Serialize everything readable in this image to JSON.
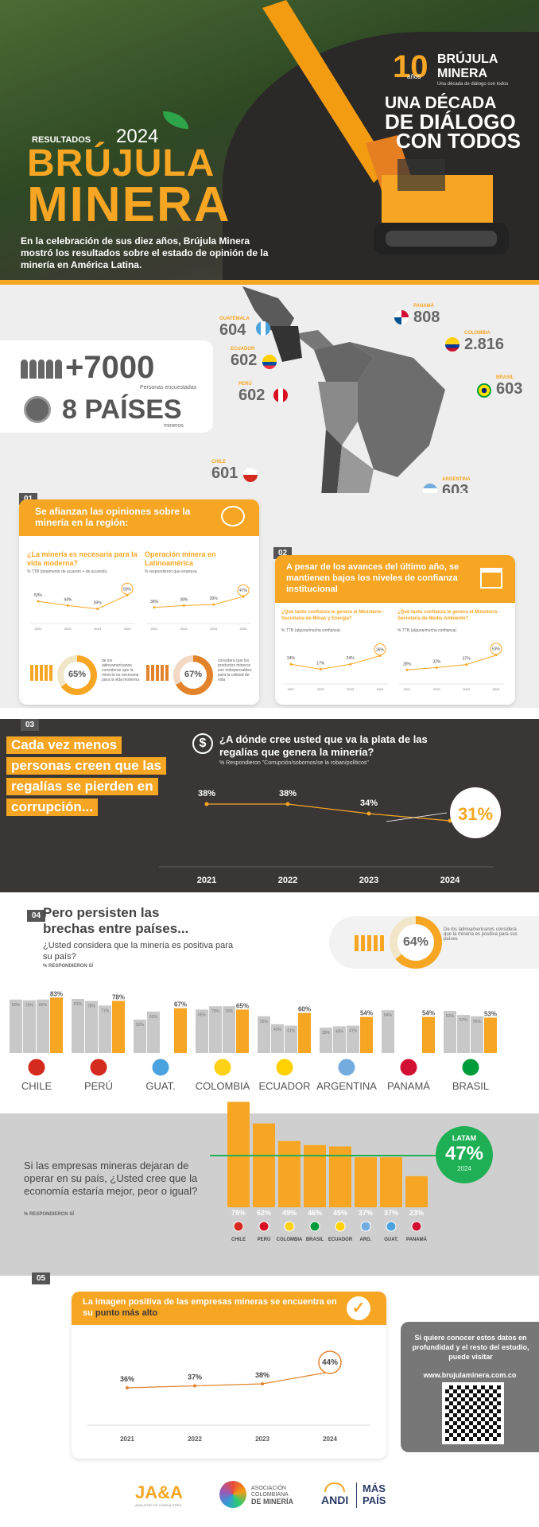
{
  "colors": {
    "accent": "#f6a623",
    "dark": "#3b3636",
    "green": "#1fb055",
    "grey": "#c8c8c8",
    "orange_line": "#e2832b"
  },
  "hero": {
    "kicker": "RESULTADOS",
    "year": "2024",
    "title_line1": "BRÚJULA",
    "title_line2": "MINERA",
    "intro": "En la celebración de sus diez años, Brújula Minera mostró los resultados sobre el estado de opinión de la minería en América Latina.",
    "logo_anniv": "10",
    "logo_anniv_sub": "años",
    "logo_name1": "BRÚJULA",
    "logo_name2": "MINERA",
    "logo_tagline": "Una década de diálogo con todos",
    "slogan1": "UNA DÉCADA",
    "slogan2": "DE DIÁLOGO",
    "slogan3": "CON TODOS"
  },
  "stats": {
    "people_value": "+7000",
    "people_label": "Personas encuestadas",
    "countries_value": "8 PAÍSES",
    "countries_label": "mineros"
  },
  "map_labels": [
    {
      "country": "GUATEMALA",
      "value": "604"
    },
    {
      "country": "PANAMÁ",
      "value": "808"
    },
    {
      "country": "ECUADOR",
      "value": "602"
    },
    {
      "country": "COLOMBIA",
      "value": "2.816"
    },
    {
      "country": "PERÚ",
      "value": "602"
    },
    {
      "country": "BRASIL",
      "value": "603"
    },
    {
      "country": "CHILE",
      "value": "601"
    },
    {
      "country": "ARGENTINA",
      "value": "603"
    }
  ],
  "s01": {
    "tag": "01",
    "title": "Se afianzan las opiniones sobre la minería en la región:",
    "left_title": "¿La minería es necesaria para la vida moderna?",
    "left_note": "% TTB (totalmente de acuerdo + de acuerdo)",
    "left_values": [
      "50%",
      "44%",
      "39%",
      "59%"
    ],
    "left_pct": "65%",
    "left_desc": "de los latinoamericanos consideran que la minería es necesaria para la vida moderna",
    "right_title": "Operación minera en Latinoamérica",
    "right_note": "% respondieron que empresa",
    "right_values": [
      "36%",
      "38%",
      "39%",
      "47%"
    ],
    "right_pct": "67%",
    "right_desc": "considera que los productos mineros son indispensables para la calidad de vida",
    "years": [
      "2021",
      "2022",
      "2023",
      "2024"
    ]
  },
  "s02": {
    "tag": "02",
    "title": "A pesar de los avances del último año, se mantienen bajos los niveles de confianza institucional",
    "left_title": "¿Qué tanto confianza le genera el Ministerio - Secretaría de Minas y Energía?",
    "left_note": "% TTB (alguna/mucha confianza)",
    "left_values": [
      "24%",
      "17%",
      "24%",
      "36%"
    ],
    "right_title": "¿Qué tanta confianza le genera el Ministerio - Secretaría de Medio Ambiente?",
    "right_note": "% TTB (alguna/mucha confianza)",
    "right_values": [
      "28%",
      "32%",
      "37%",
      "53%"
    ],
    "years": [
      "2021",
      "2022",
      "2023",
      "2024"
    ]
  },
  "s03": {
    "tag": "03",
    "headline": [
      "Cada vez menos",
      "personas creen que las",
      "regalías se pierden en",
      "corrupción..."
    ],
    "question": "¿A dónde cree usted que va la plata de las regalías que genera la minería?",
    "note": "% Respondieron \"Corrupción/sobornos/se la roban/políticos\""
  },
  "chart_03": {
    "type": "line",
    "x": [
      "2021",
      "2022",
      "2023",
      "2024"
    ],
    "values": [
      38,
      38,
      34,
      31
    ],
    "labels": [
      "38%",
      "38%",
      "34%",
      "31%"
    ],
    "ylim": [
      25,
      45
    ]
  },
  "s04": {
    "tag": "04",
    "title": "Pero persisten las brechas entre países...",
    "question": "¿Usted considera que la minería es positiva para su país?",
    "note": "% RESPONDIERON SÍ",
    "summary_pct": "64%",
    "summary_desc": "De los latinoamericanos considera que la minería es positiva para sus países"
  },
  "chart_04": {
    "type": "bar",
    "categories": [
      "CHILE",
      "PERÚ",
      "GUAT.",
      "COLOMBIA",
      "ECUADOR",
      "ARGENTINA",
      "PANAMÁ",
      "BRASIL"
    ],
    "series_2024": [
      83,
      78,
      67,
      65,
      60,
      54,
      54,
      53
    ],
    "labels_2024": [
      "83%",
      "78%",
      "67%",
      "65%",
      "60%",
      "54%",
      "54%",
      "53%"
    ],
    "previous": [
      [
        80,
        79,
        80
      ],
      [
        81,
        78,
        71
      ],
      [
        50,
        62,
        0
      ],
      [
        65,
        70,
        70
      ],
      [
        55,
        43,
        41
      ],
      [
        38,
        40,
        41
      ],
      [
        64,
        0,
        0
      ],
      [
        63,
        57,
        55
      ]
    ],
    "previous_labels": [
      [
        "80%",
        "79%",
        "80%"
      ],
      [
        "81%",
        "78%",
        "71%"
      ],
      [
        "50%",
        "62%",
        ""
      ],
      [
        "65%",
        "70%",
        "70%"
      ],
      [
        "55%",
        "43%",
        "41%"
      ],
      [
        "38%",
        "40%",
        "41%"
      ],
      [
        "64%",
        "",
        ""
      ],
      [
        "63%",
        "57%",
        "55%"
      ]
    ],
    "ylim": [
      0,
      100
    ]
  },
  "s04b": {
    "question": "Si las empresas mineras dejaran de operar en su país, ¿Usted cree que la economía estaría mejor, peor o igual?",
    "note": "% RESPONDIERON SÍ",
    "latam_label": "LATAM",
    "latam_value": "47%",
    "latam_year": "2024"
  },
  "chart_04b": {
    "type": "bar",
    "categories": [
      "CHILE",
      "PERÚ",
      "COLOMBIA",
      "BRASIL",
      "ECUADOR",
      "ARG.",
      "GUAT.",
      "PANAMÁ"
    ],
    "values": [
      78,
      62,
      49,
      46,
      45,
      37,
      37,
      23
    ],
    "labels": [
      "78%",
      "62%",
      "49%",
      "46%",
      "45%",
      "37%",
      "37%",
      "23%"
    ],
    "ylim": [
      0,
      100
    ]
  },
  "s05": {
    "tag": "05",
    "title_a": "La imagen positiva de las empresas mineras se encuentra en su ",
    "title_b": "punto más alto",
    "cta": "Si quiere conocer estos datos en profundidad y el resto del estudio, puede visitar",
    "url": "www.brujulaminera.com.co"
  },
  "chart_05": {
    "type": "line",
    "x": [
      "2021",
      "2022",
      "2023",
      "2024"
    ],
    "values": [
      36,
      37,
      38,
      44
    ],
    "labels": [
      "36%",
      "37%",
      "38%",
      "44%"
    ],
    "ylim": [
      30,
      50
    ]
  },
  "footer": {
    "logo1": "JA&A",
    "logo1_sub": "ANALISTAS DE CONSULTORÍA",
    "logo2_a": "ASOCIACIÓN",
    "logo2_b": "COLOMBIANA",
    "logo2_c": "DE MINERÍA",
    "logo3": "ANDI",
    "logo4_a": "MÁS",
    "logo4_b": "PAÍS"
  }
}
